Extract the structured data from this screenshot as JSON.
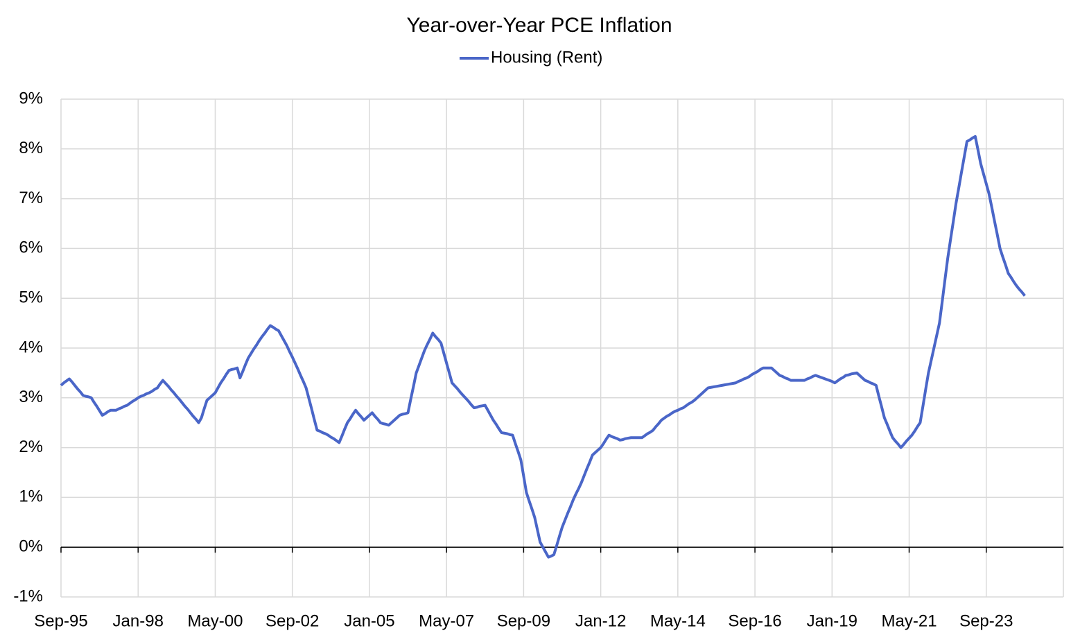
{
  "chart_data": {
    "type": "line",
    "title": "Year-over-Year PCE Inflation",
    "categories": [
      "Sep-95",
      null,
      null,
      null,
      null,
      null,
      null,
      null,
      null,
      null,
      null,
      null,
      null,
      null,
      null,
      null,
      null,
      null,
      null,
      null,
      null,
      null,
      null,
      null,
      null,
      null,
      null,
      null,
      "Jan-98",
      null,
      null,
      null,
      null,
      null,
      null,
      null,
      null,
      null,
      null,
      null,
      null,
      null,
      null,
      null,
      null,
      null,
      null,
      null,
      null,
      null,
      null,
      null,
      null,
      null,
      null,
      null,
      "May-00",
      null,
      null,
      null,
      null,
      null,
      null,
      null,
      null,
      null,
      null,
      null,
      null,
      null,
      null,
      null,
      null,
      null,
      null,
      null,
      null,
      null,
      null,
      null,
      null,
      null,
      null,
      null,
      "Sep-02",
      null,
      null,
      null,
      null,
      null,
      null,
      null,
      null,
      null,
      null,
      null,
      null,
      null,
      null,
      null,
      null,
      null,
      null,
      null,
      null,
      null,
      null,
      null,
      null,
      null,
      null,
      null,
      "Jan-05",
      null,
      null,
      null,
      null,
      null,
      null,
      null,
      null,
      null,
      null,
      null,
      null,
      null,
      null,
      null,
      null,
      null,
      null,
      null,
      null,
      null,
      null,
      null,
      null,
      null,
      null,
      null,
      "May-07",
      null,
      null,
      null,
      null,
      null,
      null,
      null,
      null,
      null,
      null,
      null,
      null,
      null,
      null,
      null,
      null,
      null,
      null,
      null,
      null,
      null,
      null,
      null,
      null,
      null,
      null,
      null,
      "Sep-09",
      null,
      null,
      null,
      null,
      null,
      null,
      null,
      null,
      null,
      null,
      null,
      null,
      null,
      null,
      null,
      null,
      null,
      null,
      null,
      null,
      null,
      null,
      null,
      null,
      null,
      null,
      null,
      "Jan-12",
      null,
      null,
      null,
      null,
      null,
      null,
      null,
      null,
      null,
      null,
      null,
      null,
      null,
      null,
      null,
      null,
      null,
      null,
      null,
      null,
      null,
      null,
      null,
      null,
      null,
      null,
      null,
      "May-14",
      null,
      null,
      null,
      null,
      null,
      null,
      null,
      null,
      null,
      null,
      null,
      null,
      null,
      null,
      null,
      null,
      null,
      null,
      null,
      null,
      null,
      null,
      null,
      null,
      null,
      null,
      null,
      "Sep-16",
      null,
      null,
      null,
      null,
      null,
      null,
      null,
      null,
      null,
      null,
      null,
      null,
      null,
      null,
      null,
      null,
      null,
      null,
      null,
      null,
      null,
      null,
      null,
      null,
      null,
      null,
      null,
      "Jan-19",
      null,
      null,
      null,
      null,
      null,
      null,
      null,
      null,
      null,
      null,
      null,
      null,
      null,
      null,
      null,
      null,
      null,
      null,
      null,
      null,
      null,
      null,
      null,
      null,
      null,
      null,
      null,
      "May-21",
      null,
      null,
      null,
      null,
      null,
      null,
      null,
      null,
      null,
      null,
      null,
      null,
      null,
      null,
      null,
      null,
      null,
      null,
      null,
      null,
      null,
      null,
      null,
      null,
      null,
      null,
      null,
      "Sep-23",
      null,
      null,
      null,
      null,
      null,
      null,
      null,
      null,
      null,
      null,
      null,
      null,
      null,
      null,
      null,
      null,
      null,
      null,
      null,
      null,
      null,
      null,
      null,
      null,
      null,
      null,
      null,
      null
    ],
    "series": [
      {
        "name": "Housing (Rent)",
        "color": "#4a66c8",
        "values": [
          3.25,
          3.3,
          3.34,
          3.38,
          3.32,
          3.25,
          3.18,
          3.12,
          3.05,
          3.03,
          3.02,
          3.0,
          2.91,
          2.83,
          2.74,
          2.65,
          2.68,
          2.72,
          2.75,
          2.75,
          2.75,
          2.78,
          2.8,
          2.83,
          2.85,
          2.89,
          2.93,
          2.96,
          3.0,
          3.03,
          3.05,
          3.08,
          3.1,
          3.13,
          3.17,
          3.2,
          3.28,
          3.35,
          3.29,
          3.23,
          3.16,
          3.1,
          3.03,
          2.97,
          2.9,
          2.83,
          2.77,
          2.7,
          2.63,
          2.57,
          2.5,
          2.6,
          2.78,
          2.95,
          3.0,
          3.05,
          3.1,
          3.2,
          3.3,
          3.38,
          3.47,
          3.55,
          3.57,
          3.58,
          3.6,
          3.4,
          3.53,
          3.67,
          3.8,
          3.89,
          3.98,
          4.06,
          4.15,
          4.23,
          4.3,
          4.38,
          4.45,
          4.42,
          4.38,
          4.35,
          4.25,
          4.15,
          4.05,
          3.93,
          3.82,
          3.7,
          3.58,
          3.45,
          3.33,
          3.2,
          2.99,
          2.78,
          2.56,
          2.35,
          2.33,
          2.3,
          2.28,
          2.25,
          2.21,
          2.18,
          2.14,
          2.1,
          2.23,
          2.37,
          2.5,
          2.58,
          2.67,
          2.75,
          2.68,
          2.62,
          2.55,
          2.6,
          2.65,
          2.7,
          2.63,
          2.57,
          2.5,
          2.48,
          2.47,
          2.45,
          2.5,
          2.55,
          2.6,
          2.65,
          2.67,
          2.68,
          2.7,
          2.97,
          3.23,
          3.5,
          3.65,
          3.8,
          3.95,
          4.07,
          4.18,
          4.3,
          4.23,
          4.17,
          4.1,
          3.9,
          3.7,
          3.5,
          3.3,
          3.24,
          3.18,
          3.11,
          3.05,
          2.99,
          2.93,
          2.86,
          2.8,
          2.81,
          2.83,
          2.84,
          2.85,
          2.75,
          2.65,
          2.55,
          2.47,
          2.38,
          2.3,
          2.29,
          2.28,
          2.26,
          2.25,
          2.08,
          1.92,
          1.75,
          1.43,
          1.1,
          0.93,
          0.77,
          0.6,
          0.35,
          0.1,
          0.0,
          -0.1,
          -0.2,
          -0.18,
          -0.15,
          0.03,
          0.22,
          0.4,
          0.54,
          0.68,
          0.81,
          0.95,
          1.07,
          1.18,
          1.3,
          1.44,
          1.58,
          1.71,
          1.85,
          1.9,
          1.95,
          2.0,
          2.08,
          2.17,
          2.25,
          2.22,
          2.2,
          2.18,
          2.15,
          2.16,
          2.18,
          2.19,
          2.2,
          2.2,
          2.2,
          2.2,
          2.2,
          2.24,
          2.28,
          2.31,
          2.35,
          2.42,
          2.48,
          2.55,
          2.59,
          2.63,
          2.66,
          2.7,
          2.73,
          2.75,
          2.78,
          2.8,
          2.84,
          2.88,
          2.91,
          2.95,
          3.0,
          3.05,
          3.1,
          3.15,
          3.2,
          3.21,
          3.22,
          3.23,
          3.24,
          3.25,
          3.26,
          3.27,
          3.28,
          3.29,
          3.3,
          3.33,
          3.35,
          3.38,
          3.4,
          3.43,
          3.47,
          3.5,
          3.53,
          3.57,
          3.6,
          3.6,
          3.6,
          3.6,
          3.55,
          3.5,
          3.45,
          3.43,
          3.4,
          3.38,
          3.35,
          3.35,
          3.35,
          3.35,
          3.35,
          3.35,
          3.38,
          3.4,
          3.43,
          3.45,
          3.43,
          3.41,
          3.39,
          3.37,
          3.35,
          3.33,
          3.3,
          3.34,
          3.38,
          3.41,
          3.45,
          3.46,
          3.48,
          3.49,
          3.5,
          3.45,
          3.4,
          3.35,
          3.33,
          3.3,
          3.28,
          3.25,
          3.03,
          2.82,
          2.6,
          2.47,
          2.33,
          2.2,
          2.13,
          2.07,
          2.0,
          2.06,
          2.13,
          2.19,
          2.25,
          2.33,
          2.42,
          2.5,
          2.83,
          3.17,
          3.5,
          3.75,
          4.0,
          4.25,
          4.5,
          4.93,
          5.37,
          5.8,
          6.17,
          6.53,
          6.9,
          7.21,
          7.53,
          7.84,
          8.15,
          8.18,
          8.22,
          8.25,
          7.98,
          7.7,
          7.5,
          7.3,
          7.1,
          6.83,
          6.55,
          6.28,
          6.0,
          5.83,
          5.67,
          5.5,
          5.42,
          5.33,
          5.25,
          5.18,
          5.12,
          5.05,
          null,
          null,
          null,
          null,
          null,
          null,
          null,
          null,
          null,
          null,
          null,
          null,
          null,
          null
        ]
      }
    ],
    "ylim": [
      -1,
      9
    ],
    "yticks": [
      {
        "value": -1,
        "label": "-1%"
      },
      {
        "value": 0,
        "label": "0%"
      },
      {
        "value": 1,
        "label": "1%"
      },
      {
        "value": 2,
        "label": "2%"
      },
      {
        "value": 3,
        "label": "3%"
      },
      {
        "value": 4,
        "label": "4%"
      },
      {
        "value": 5,
        "label": "5%"
      },
      {
        "value": 6,
        "label": "6%"
      },
      {
        "value": 7,
        "label": "7%"
      },
      {
        "value": 8,
        "label": "8%"
      },
      {
        "value": 9,
        "label": "9%"
      }
    ],
    "grid": true,
    "legend": "top"
  }
}
